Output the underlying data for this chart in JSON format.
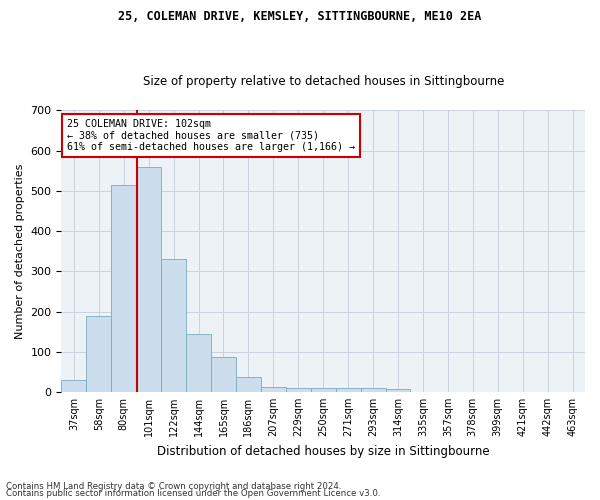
{
  "title1": "25, COLEMAN DRIVE, KEMSLEY, SITTINGBOURNE, ME10 2EA",
  "title2": "Size of property relative to detached houses in Sittingbourne",
  "xlabel": "Distribution of detached houses by size in Sittingbourne",
  "ylabel": "Number of detached properties",
  "categories": [
    "37sqm",
    "58sqm",
    "80sqm",
    "101sqm",
    "122sqm",
    "144sqm",
    "165sqm",
    "186sqm",
    "207sqm",
    "229sqm",
    "250sqm",
    "271sqm",
    "293sqm",
    "314sqm",
    "335sqm",
    "357sqm",
    "378sqm",
    "399sqm",
    "421sqm",
    "442sqm",
    "463sqm"
  ],
  "values": [
    30,
    190,
    515,
    560,
    330,
    145,
    88,
    38,
    12,
    10,
    10,
    10,
    10,
    8,
    0,
    0,
    0,
    0,
    0,
    0,
    0
  ],
  "bar_color": "#ccdded",
  "bar_edge_color": "#7aaabb",
  "vline_color": "#cc0000",
  "box_edge_color": "#cc0000",
  "grid_color": "#c8d4e0",
  "background_color": "#edf2f7",
  "annotation_line1": "25 COLEMAN DRIVE: 102sqm",
  "annotation_line2": "← 38% of detached houses are smaller (735)",
  "annotation_line3": "61% of semi-detached houses are larger (1,166) →",
  "footnote1": "Contains HM Land Registry data © Crown copyright and database right 2024.",
  "footnote2": "Contains public sector information licensed under the Open Government Licence v3.0.",
  "ylim": [
    0,
    700
  ],
  "vline_x_index": 3.05
}
